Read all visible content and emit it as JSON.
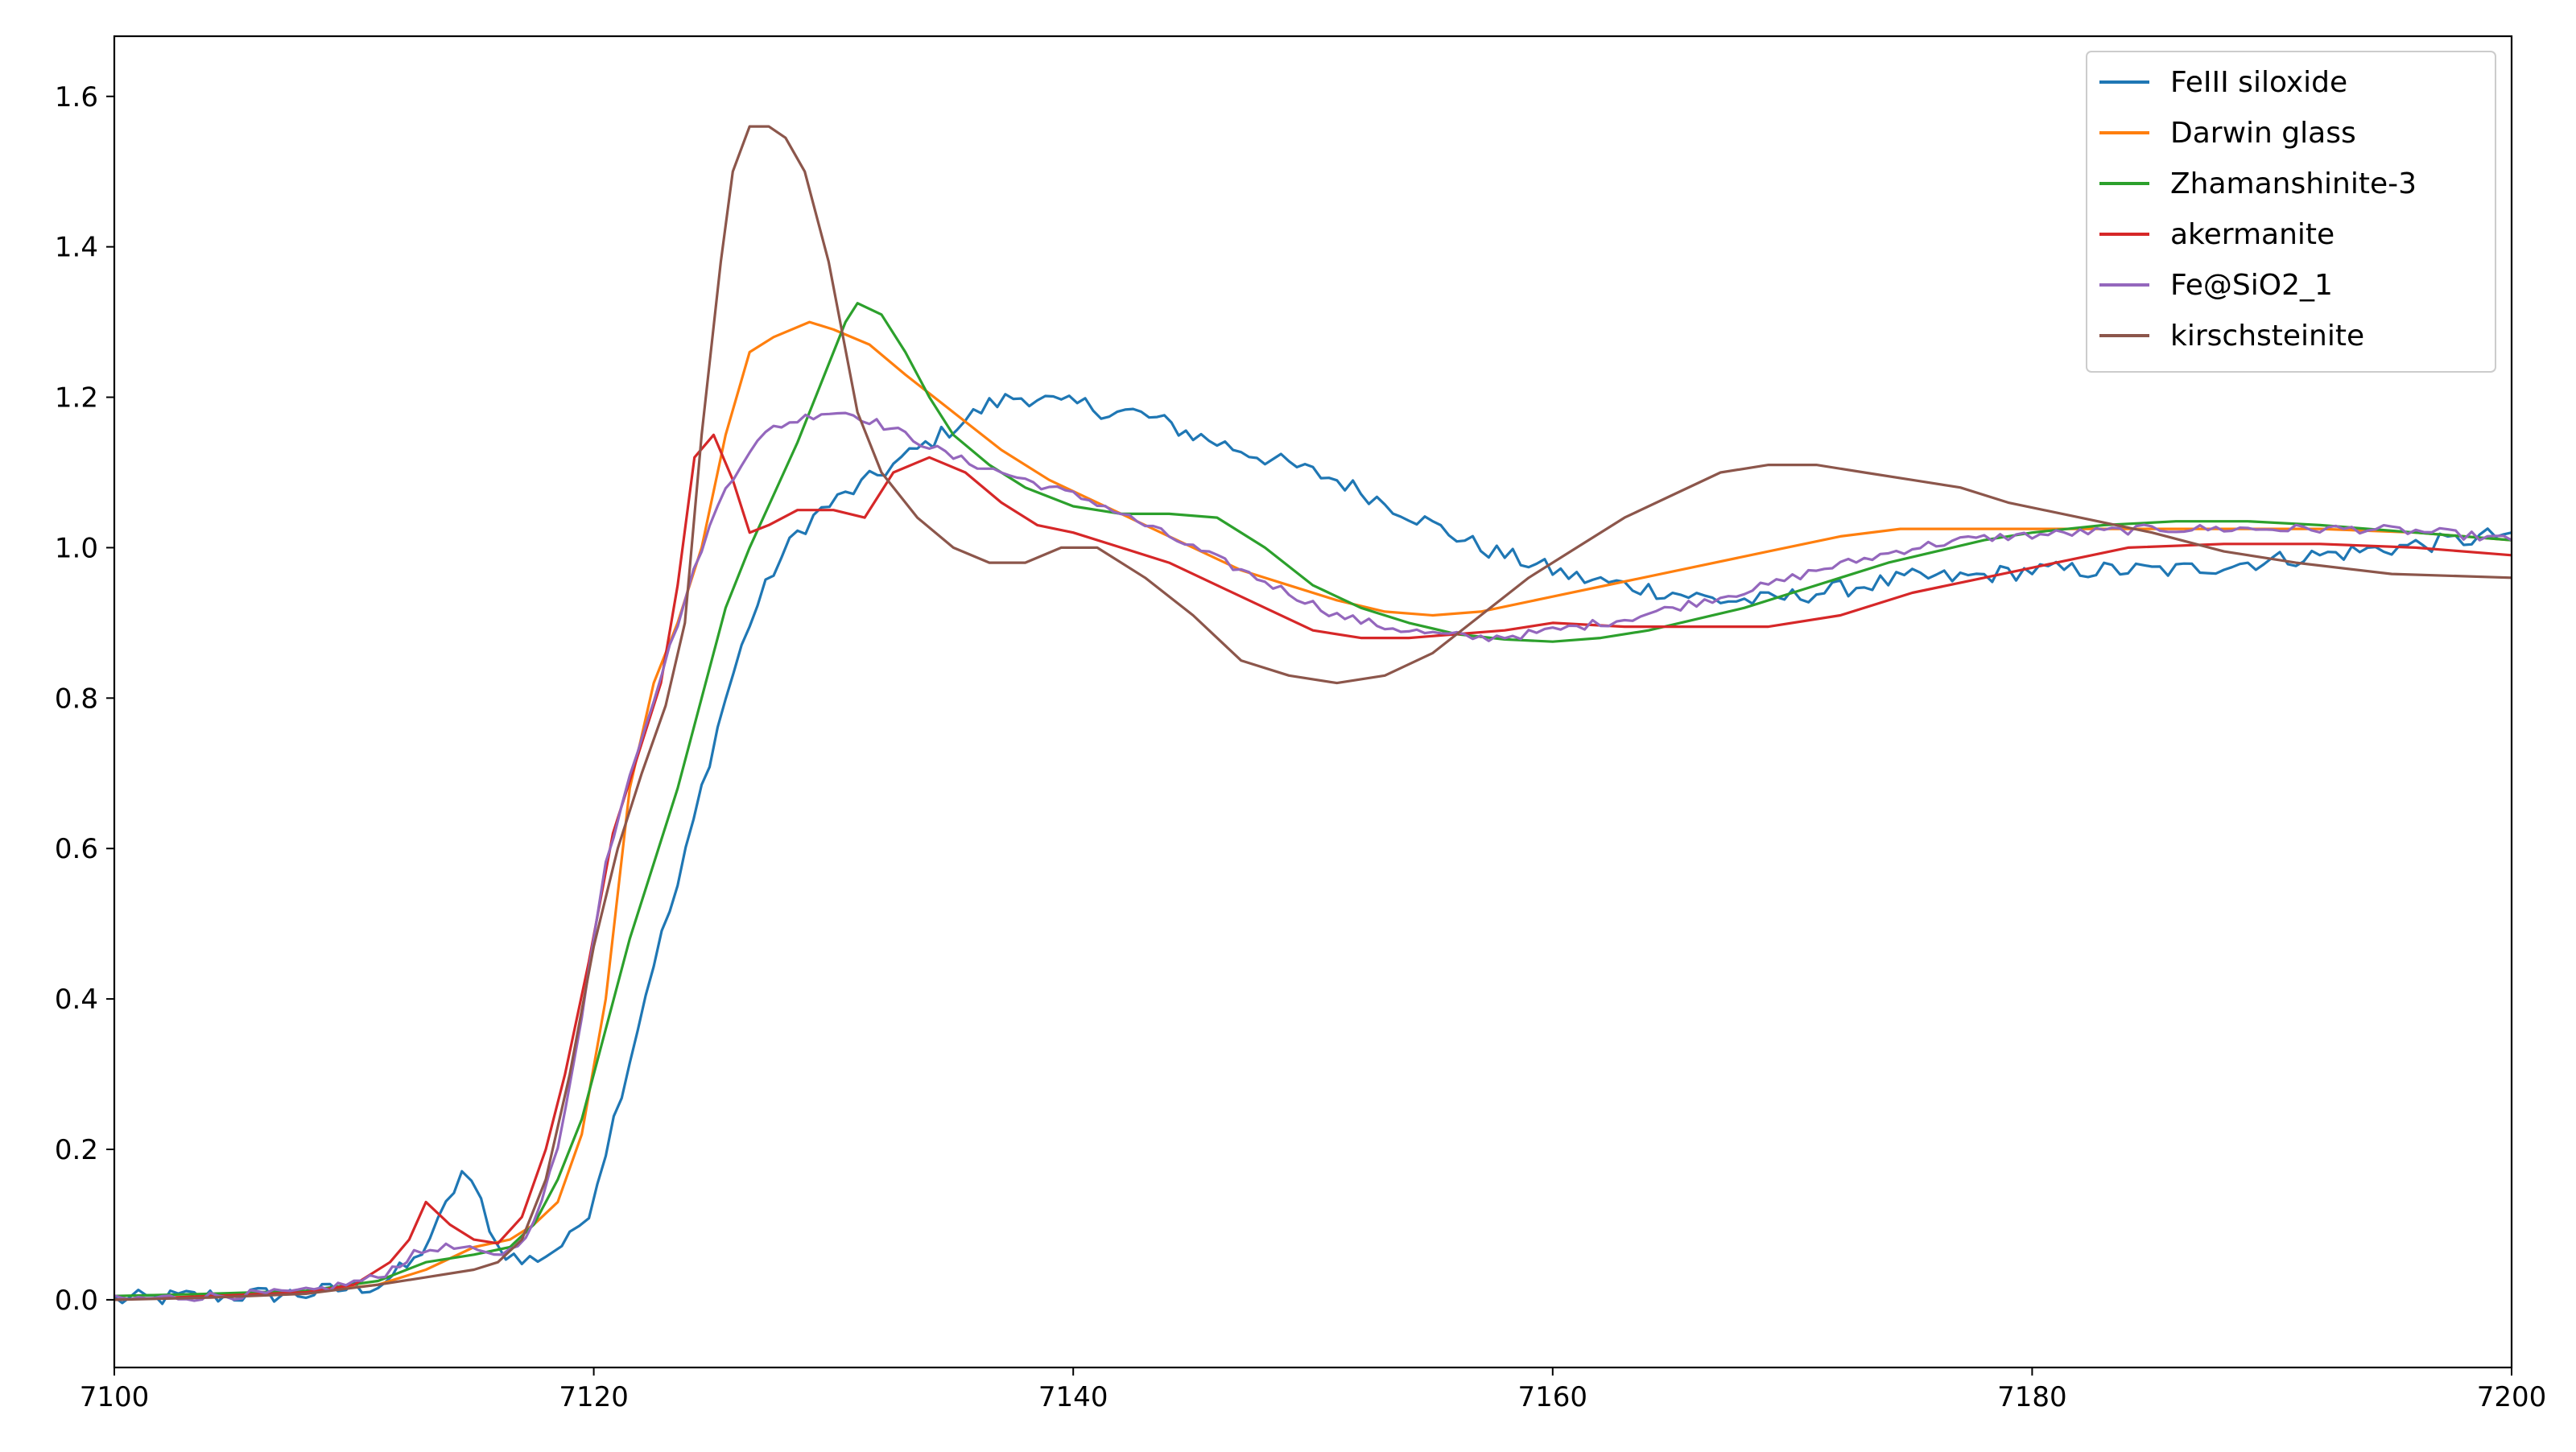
{
  "chart_data": {
    "type": "line",
    "title": "",
    "xlabel": "",
    "ylabel": "",
    "xlim": [
      7100,
      7200
    ],
    "ylim": [
      -0.09,
      1.68
    ],
    "xticks": [
      7100,
      7120,
      7140,
      7160,
      7180,
      7200
    ],
    "xtick_labels": [
      "7100",
      "7120",
      "7140",
      "7160",
      "7180",
      "7200"
    ],
    "yticks": [
      0.0,
      0.2,
      0.4,
      0.6,
      0.8,
      1.0,
      1.2,
      1.4,
      1.6
    ],
    "ytick_labels": [
      "0.0",
      "0.2",
      "0.4",
      "0.6",
      "0.8",
      "1.0",
      "1.2",
      "1.4",
      "1.6"
    ],
    "grid": false,
    "legend_position": "top-right",
    "series": [
      {
        "name": "FeIII siloxide",
        "color": "#1f77b4",
        "noise": 0.012,
        "x": [
          7100,
          7104,
          7108,
          7111,
          7112.5,
          7113.5,
          7114.5,
          7115.3,
          7116,
          7117,
          7118,
          7119,
          7119.8,
          7120.5,
          7121.5,
          7122.5,
          7123.5,
          7124.5,
          7125.5,
          7126.5,
          7127.5,
          7128.5,
          7129.5,
          7130.5,
          7131.5,
          7132.5,
          7133.5,
          7134.5,
          7135.5,
          7136.5,
          7137.5,
          7138.5,
          7139.5,
          7140.5,
          7141.5,
          7142.5,
          7143.5,
          7145,
          7147,
          7149,
          7151,
          7153,
          7155,
          7157,
          7159,
          7161,
          7163,
          7165,
          7167,
          7169,
          7171,
          7173,
          7175,
          7177,
          7180,
          7183,
          7186,
          7189,
          7192,
          7195,
          7198,
          7200
        ],
        "y": [
          0.0,
          0.005,
          0.008,
          0.02,
          0.05,
          0.1,
          0.17,
          0.13,
          0.07,
          0.05,
          0.06,
          0.08,
          0.12,
          0.2,
          0.32,
          0.45,
          0.55,
          0.68,
          0.8,
          0.9,
          0.97,
          1.02,
          1.05,
          1.07,
          1.09,
          1.11,
          1.13,
          1.15,
          1.17,
          1.19,
          1.2,
          1.2,
          1.19,
          1.19,
          1.18,
          1.18,
          1.17,
          1.15,
          1.13,
          1.11,
          1.09,
          1.06,
          1.03,
          1.0,
          0.98,
          0.96,
          0.95,
          0.94,
          0.93,
          0.93,
          0.94,
          0.95,
          0.96,
          0.96,
          0.97,
          0.97,
          0.97,
          0.98,
          0.99,
          1.0,
          1.01,
          1.02
        ]
      },
      {
        "name": "Darwin glass",
        "color": "#ff7f0e",
        "noise": 0,
        "x": [
          7100,
          7104,
          7108,
          7111,
          7113,
          7115,
          7116.5,
          7117.5,
          7118.5,
          7119.5,
          7120.5,
          7121.5,
          7122.5,
          7123.5,
          7124.5,
          7125.5,
          7126.5,
          7127.5,
          7129,
          7130,
          7131.5,
          7133,
          7135,
          7137,
          7139,
          7141,
          7143,
          7145,
          7147,
          7149,
          7151,
          7153,
          7155,
          7157,
          7160,
          7163,
          7166,
          7169,
          7172,
          7174.5,
          7177,
          7180,
          7184,
          7188,
          7192,
          7196,
          7200
        ],
        "y": [
          0.0,
          0.005,
          0.01,
          0.02,
          0.04,
          0.07,
          0.08,
          0.1,
          0.13,
          0.22,
          0.4,
          0.68,
          0.82,
          0.9,
          1.0,
          1.15,
          1.26,
          1.28,
          1.3,
          1.29,
          1.27,
          1.23,
          1.18,
          1.13,
          1.09,
          1.06,
          1.03,
          1.0,
          0.97,
          0.95,
          0.93,
          0.915,
          0.91,
          0.915,
          0.935,
          0.955,
          0.975,
          0.995,
          1.015,
          1.025,
          1.025,
          1.025,
          1.025,
          1.025,
          1.025,
          1.02,
          1.01
        ]
      },
      {
        "name": "Zhamanshinite-3",
        "color": "#2ca02c",
        "noise": 0,
        "x": [
          7100,
          7104,
          7108,
          7111,
          7113,
          7115,
          7116.5,
          7117.5,
          7118.5,
          7119.5,
          7120.5,
          7121.5,
          7122.5,
          7123.5,
          7124.5,
          7125.5,
          7126.5,
          7127.5,
          7128.5,
          7129.5,
          7130.5,
          7131,
          7132,
          7133,
          7134,
          7135,
          7136.5,
          7138,
          7140,
          7142,
          7144,
          7146,
          7148,
          7150,
          7152,
          7154,
          7156,
          7158,
          7160,
          7162,
          7164,
          7166,
          7168,
          7170,
          7172,
          7174,
          7176,
          7178,
          7180,
          7183,
          7186,
          7189,
          7192,
          7196,
          7200
        ],
        "y": [
          0.005,
          0.008,
          0.012,
          0.025,
          0.05,
          0.06,
          0.07,
          0.1,
          0.16,
          0.24,
          0.36,
          0.48,
          0.58,
          0.68,
          0.8,
          0.92,
          1.0,
          1.07,
          1.14,
          1.22,
          1.3,
          1.325,
          1.31,
          1.26,
          1.2,
          1.15,
          1.11,
          1.08,
          1.055,
          1.045,
          1.045,
          1.04,
          1.0,
          0.95,
          0.92,
          0.9,
          0.885,
          0.878,
          0.875,
          0.88,
          0.89,
          0.905,
          0.92,
          0.94,
          0.96,
          0.98,
          0.995,
          1.01,
          1.02,
          1.03,
          1.035,
          1.035,
          1.03,
          1.02,
          1.01
        ]
      },
      {
        "name": "akermanite",
        "color": "#d62728",
        "noise": 0,
        "x": [
          7100,
          7104,
          7108,
          7110,
          7111.5,
          7112.3,
          7113,
          7114,
          7115,
          7116,
          7117,
          7118,
          7118.8,
          7119.8,
          7120.8,
          7121.8,
          7122.8,
          7123.5,
          7124.2,
          7125,
          7125.8,
          7126.5,
          7127.3,
          7128.5,
          7130,
          7131.3,
          7132.5,
          7134,
          7135.5,
          7137,
          7138.5,
          7140,
          7142,
          7144,
          7146,
          7148,
          7150,
          7152,
          7154,
          7156,
          7158,
          7160,
          7163,
          7166,
          7169,
          7172,
          7175,
          7178,
          7181,
          7184,
          7188,
          7192,
          7196,
          7200
        ],
        "y": [
          0.0,
          0.005,
          0.01,
          0.02,
          0.05,
          0.08,
          0.13,
          0.1,
          0.08,
          0.075,
          0.11,
          0.2,
          0.3,
          0.45,
          0.62,
          0.72,
          0.82,
          0.95,
          1.12,
          1.15,
          1.09,
          1.02,
          1.03,
          1.05,
          1.05,
          1.04,
          1.1,
          1.12,
          1.1,
          1.06,
          1.03,
          1.02,
          1.0,
          0.98,
          0.95,
          0.92,
          0.89,
          0.88,
          0.88,
          0.885,
          0.89,
          0.9,
          0.895,
          0.895,
          0.895,
          0.91,
          0.94,
          0.96,
          0.98,
          1.0,
          1.005,
          1.005,
          1.0,
          0.99
        ]
      },
      {
        "name": "Fe@SiO2_1",
        "color": "#9467bd",
        "noise": 0.006,
        "x": [
          7100,
          7104,
          7108,
          7111,
          7112.5,
          7113.5,
          7114.5,
          7115.5,
          7116.5,
          7117.5,
          7118.5,
          7119.5,
          7120.5,
          7121.5,
          7122.5,
          7123.5,
          7124.5,
          7125.5,
          7126.5,
          7127.5,
          7128.5,
          7129.5,
          7130.5,
          7131.5,
          7133,
          7135,
          7137,
          7139,
          7141,
          7143,
          7145,
          7147,
          7149,
          7151,
          7153,
          7155,
          7157,
          7159,
          7161,
          7163,
          7165,
          7167,
          7169,
          7171,
          7173,
          7175,
          7177,
          7179,
          7182,
          7185,
          7188,
          7191,
          7194,
          7197,
          7200
        ],
        "y": [
          0.0,
          0.005,
          0.01,
          0.03,
          0.06,
          0.07,
          0.068,
          0.06,
          0.065,
          0.1,
          0.2,
          0.38,
          0.58,
          0.7,
          0.8,
          0.9,
          1.0,
          1.08,
          1.13,
          1.16,
          1.17,
          1.18,
          1.18,
          1.17,
          1.15,
          1.12,
          1.1,
          1.08,
          1.06,
          1.03,
          1.0,
          0.97,
          0.94,
          0.91,
          0.895,
          0.885,
          0.88,
          0.885,
          0.895,
          0.905,
          0.92,
          0.935,
          0.95,
          0.97,
          0.985,
          1.0,
          1.01,
          1.015,
          1.02,
          1.025,
          1.025,
          1.025,
          1.025,
          1.02,
          1.01
        ]
      },
      {
        "name": "kirschsteinite",
        "color": "#8c564b",
        "noise": 0,
        "x": [
          7100,
          7104,
          7108,
          7111,
          7113,
          7115,
          7116,
          7117,
          7118,
          7119,
          7120,
          7121,
          7122,
          7123,
          7123.8,
          7124.5,
          7125.3,
          7125.8,
          7126.5,
          7127.3,
          7128,
          7128.8,
          7129.8,
          7131,
          7132,
          7133.5,
          7135,
          7136.5,
          7138,
          7139.5,
          7141,
          7143,
          7145,
          7147,
          7149,
          7151,
          7153,
          7155,
          7157,
          7159,
          7161,
          7163,
          7165,
          7167,
          7169,
          7171,
          7173,
          7175,
          7177,
          7179,
          7182,
          7185,
          7188,
          7191,
          7195,
          7200
        ],
        "y": [
          0.0,
          0.003,
          0.008,
          0.02,
          0.03,
          0.04,
          0.05,
          0.08,
          0.16,
          0.3,
          0.47,
          0.6,
          0.7,
          0.79,
          0.9,
          1.15,
          1.38,
          1.5,
          1.56,
          1.56,
          1.545,
          1.5,
          1.38,
          1.18,
          1.1,
          1.04,
          1.0,
          0.98,
          0.98,
          1.0,
          1.0,
          0.96,
          0.91,
          0.85,
          0.83,
          0.82,
          0.83,
          0.86,
          0.91,
          0.96,
          1.0,
          1.04,
          1.07,
          1.1,
          1.11,
          1.11,
          1.1,
          1.09,
          1.08,
          1.06,
          1.04,
          1.02,
          0.995,
          0.98,
          0.965,
          0.96
        ]
      }
    ]
  }
}
